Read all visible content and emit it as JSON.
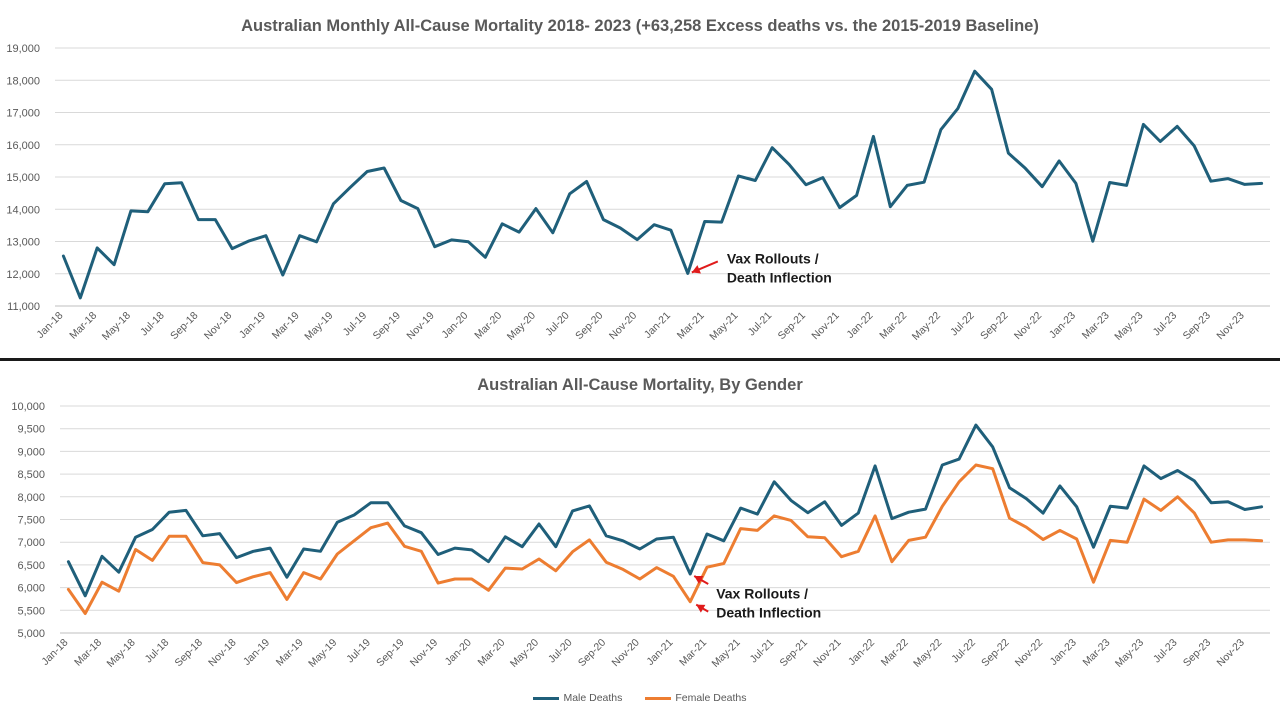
{
  "chart_data": [
    {
      "type": "line",
      "title": "Australian Monthly All-Cause Mortality 2018- 2023  (+63,258 Excess deaths vs. the 2015-2019 Baseline)",
      "xlabel": "",
      "ylabel": "",
      "ylim": [
        11000,
        19000
      ],
      "y_ticks": [
        "11,000",
        "12,000",
        "13,000",
        "14,000",
        "15,000",
        "16,000",
        "17,000",
        "18,000",
        "19,000"
      ],
      "tick_labels": [
        "Jan-18",
        "Mar-18",
        "May-18",
        "Jul-18",
        "Sep-18",
        "Nov-18",
        "Jan-19",
        "Mar-19",
        "May-19",
        "Jul-19",
        "Sep-19",
        "Nov-19",
        "Jan-20",
        "Mar-20",
        "May-20",
        "Jul-20",
        "Sep-20",
        "Nov-20",
        "Jan-21",
        "Mar-21",
        "May-21",
        "Jul-21",
        "Sep-21",
        "Nov-21",
        "Jan-22",
        "Mar-22",
        "May-22",
        "Jul-22",
        "Sep-22",
        "Nov-22",
        "Jan-23",
        "Mar-23",
        "May-23",
        "Jul-23",
        "Sep-23",
        "Nov-23"
      ],
      "grid": true,
      "series": [
        {
          "color": "#1f5f7a",
          "values": [
            12550,
            11250,
            12800,
            12280,
            13950,
            13920,
            14790,
            14820,
            13680,
            13680,
            12780,
            13020,
            13180,
            11960,
            13180,
            12990,
            14170,
            14680,
            15170,
            15280,
            14270,
            14020,
            12840,
            13050,
            12990,
            12510,
            13550,
            13290,
            14020,
            13270,
            14480,
            14860,
            13680,
            13420,
            13060,
            13520,
            13350,
            12010,
            13620,
            13600,
            15030,
            14890,
            15910,
            15390,
            14760,
            14980,
            14050,
            14430,
            16260,
            14080,
            14740,
            14840,
            16470,
            17120,
            18280,
            17720,
            15740,
            15270,
            14700,
            15500,
            14800,
            13010,
            14830,
            14740,
            16630,
            16100,
            16570,
            15970,
            14870,
            14950,
            14770,
            14800
          ]
        }
      ],
      "annotation": {
        "text_line1": "Vax Rollouts /",
        "text_line2": "Death Inflection",
        "arrow_color": "#e01b1b",
        "target_month": "Feb-21"
      }
    },
    {
      "type": "line",
      "title": "Australian All-Cause Mortality, By Gender",
      "xlabel": "",
      "ylabel": "",
      "ylim": [
        5000,
        10000
      ],
      "y_ticks": [
        "5,000",
        "5,500",
        "6,000",
        "6,500",
        "7,000",
        "7,500",
        "8,000",
        "8,500",
        "9,000",
        "9,500",
        "10,000"
      ],
      "tick_labels": [
        "Jan-18",
        "Mar-18",
        "May-18",
        "Jul-18",
        "Sep-18",
        "Nov-18",
        "Jan-19",
        "Mar-19",
        "May-19",
        "Jul-19",
        "Sep-19",
        "Nov-19",
        "Jan-20",
        "Mar-20",
        "May-20",
        "Jul-20",
        "Sep-20",
        "Nov-20",
        "Jan-21",
        "Mar-21",
        "May-21",
        "Jul-21",
        "Sep-21",
        "Nov-21",
        "Jan-22",
        "Mar-22",
        "May-22",
        "Jul-22",
        "Sep-22",
        "Nov-22",
        "Jan-23",
        "Mar-23",
        "May-23",
        "Jul-23",
        "Sep-23",
        "Nov-23"
      ],
      "grid": true,
      "legend_position": "bottom",
      "series": [
        {
          "name": "Male Deaths",
          "color": "#1f5f7a",
          "values": [
            6570,
            5820,
            6690,
            6340,
            7110,
            7280,
            7660,
            7700,
            7140,
            7190,
            6660,
            6800,
            6870,
            6230,
            6850,
            6800,
            7440,
            7600,
            7870,
            7870,
            7360,
            7210,
            6730,
            6870,
            6830,
            6570,
            7120,
            6900,
            7400,
            6900,
            7690,
            7800,
            7140,
            7030,
            6850,
            7070,
            7110,
            6300,
            7180,
            7030,
            7750,
            7620,
            8330,
            7920,
            7650,
            7890,
            7370,
            7640,
            8680,
            7520,
            7660,
            7730,
            8700,
            8830,
            9580,
            9100,
            8200,
            7960,
            7640,
            8240,
            7780,
            6890,
            7790,
            7750,
            8680,
            8400,
            8580,
            8350,
            7870,
            7890,
            7720,
            7780
          ]
        },
        {
          "name": "Female Deaths",
          "color": "#ed7d31",
          "values": [
            5960,
            5430,
            6120,
            5920,
            6840,
            6600,
            7130,
            7130,
            6550,
            6500,
            6110,
            6240,
            6330,
            5740,
            6330,
            6190,
            6740,
            7030,
            7320,
            7420,
            6910,
            6800,
            6100,
            6190,
            6190,
            5940,
            6430,
            6410,
            6630,
            6370,
            6790,
            7050,
            6560,
            6400,
            6190,
            6440,
            6250,
            5690,
            6450,
            6530,
            7300,
            7260,
            7580,
            7480,
            7120,
            7100,
            6680,
            6800,
            7580,
            6570,
            7040,
            7110,
            7790,
            8330,
            8700,
            8620,
            7530,
            7330,
            7060,
            7260,
            7070,
            6120,
            7040,
            7000,
            7950,
            7700,
            8000,
            7640,
            7000,
            7050,
            7050,
            7030
          ]
        }
      ],
      "annotation": {
        "text_line1": "Vax Rollouts /",
        "text_line2": "Death Inflection",
        "arrow_color": "#e01b1b",
        "target_month": "Feb-21"
      }
    }
  ]
}
